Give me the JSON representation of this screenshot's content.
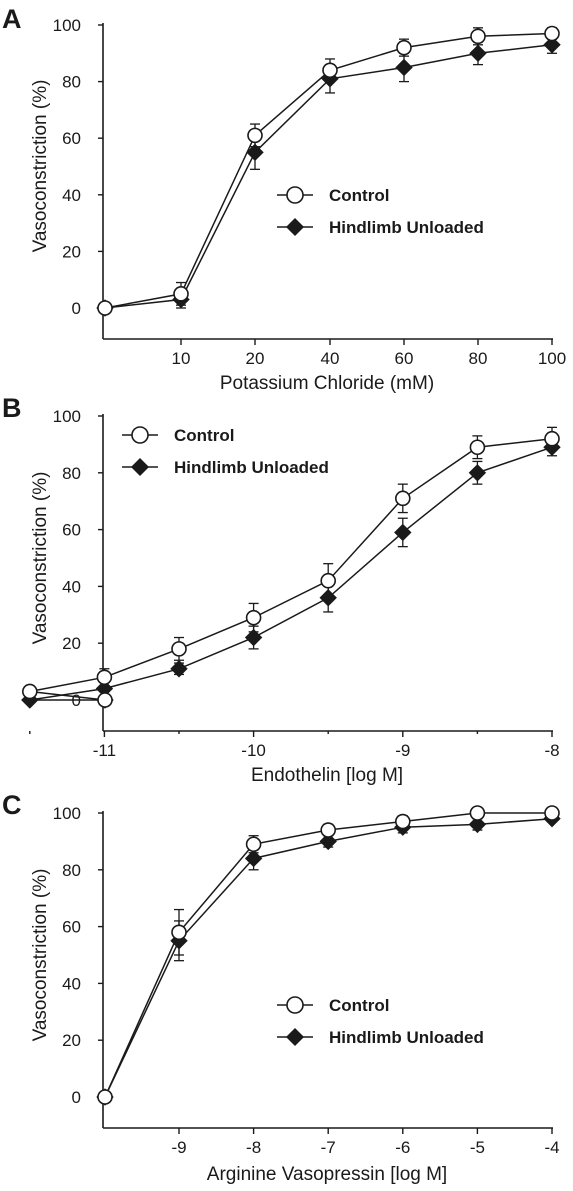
{
  "chart_data": [
    {
      "type": "line",
      "panel": "A",
      "xlabel": "Potassium Chloride (mM)",
      "ylabel": "Vasoconstriction (%)",
      "ylim": [
        0,
        100
      ],
      "yticks": [
        "0",
        "20",
        "40",
        "60",
        "80",
        "100"
      ],
      "xticks": [
        "10",
        "20",
        "40",
        "60",
        "80",
        "100"
      ],
      "legend_position": "center-right",
      "grid": false,
      "series": [
        {
          "name": "Control",
          "marker": "open-circle",
          "points": [
            {
              "x": "0",
              "y": 0,
              "err": 0
            },
            {
              "x": "10",
              "y": 5,
              "err": 4
            },
            {
              "x": "20",
              "y": 61,
              "err": 4
            },
            {
              "x": "40",
              "y": 84,
              "err": 4
            },
            {
              "x": "60",
              "y": 92,
              "err": 3
            },
            {
              "x": "80",
              "y": 96,
              "err": 3
            },
            {
              "x": "100",
              "y": 97,
              "err": 2
            }
          ]
        },
        {
          "name": "Hindlimb Unloaded",
          "marker": "filled-diamond",
          "points": [
            {
              "x": "0",
              "y": 0,
              "err": 0
            },
            {
              "x": "10",
              "y": 3,
              "err": 3
            },
            {
              "x": "20",
              "y": 55,
              "err": 6
            },
            {
              "x": "40",
              "y": 81,
              "err": 5
            },
            {
              "x": "60",
              "y": 85,
              "err": 5
            },
            {
              "x": "80",
              "y": 90,
              "err": 4
            },
            {
              "x": "100",
              "y": 93,
              "err": 3
            }
          ]
        }
      ]
    },
    {
      "type": "line",
      "panel": "B",
      "xlabel": "Endothelin [log M]",
      "ylabel": "Vasoconstriction (%)",
      "ylim": [
        0,
        100
      ],
      "yticks": [
        "0",
        "20",
        "40",
        "60",
        "80",
        "100"
      ],
      "xticks": [
        "-11",
        "-10",
        "-9",
        "-8"
      ],
      "legend_position": "top-left",
      "grid": false,
      "series": [
        {
          "name": "Control",
          "marker": "open-circle",
          "points": [
            {
              "x": "baseline",
              "y": 0,
              "err": 0
            },
            {
              "x": -11.5,
              "y": 3,
              "err": 1
            },
            {
              "x": -11,
              "y": 8,
              "err": 3
            },
            {
              "x": -10.5,
              "y": 18,
              "err": 4
            },
            {
              "x": -10,
              "y": 29,
              "err": 5
            },
            {
              "x": -9.5,
              "y": 42,
              "err": 6
            },
            {
              "x": -9,
              "y": 71,
              "err": 5
            },
            {
              "x": -8.5,
              "y": 89,
              "err": 4
            },
            {
              "x": -8,
              "y": 92,
              "err": 4
            }
          ]
        },
        {
          "name": "Hindlimb Unloaded",
          "marker": "filled-diamond",
          "points": [
            {
              "x": "baseline",
              "y": 0,
              "err": 0
            },
            {
              "x": -11.5,
              "y": 0,
              "err": 0
            },
            {
              "x": -11,
              "y": 4,
              "err": 1
            },
            {
              "x": -10.5,
              "y": 11,
              "err": 2
            },
            {
              "x": -10,
              "y": 22,
              "err": 4
            },
            {
              "x": -9.5,
              "y": 36,
              "err": 5
            },
            {
              "x": -9,
              "y": 59,
              "err": 5
            },
            {
              "x": -8.5,
              "y": 80,
              "err": 4
            },
            {
              "x": -8,
              "y": 89,
              "err": 3
            }
          ]
        }
      ]
    },
    {
      "type": "line",
      "panel": "C",
      "xlabel": "Arginine Vasopressin [log M]",
      "ylabel": "Vasoconstriction (%)",
      "ylim": [
        0,
        100
      ],
      "yticks": [
        "0",
        "20",
        "40",
        "60",
        "80",
        "100"
      ],
      "xticks": [
        "-9",
        "-8",
        "-7",
        "-6",
        "-5",
        "-4"
      ],
      "legend_position": "center-right",
      "grid": false,
      "series": [
        {
          "name": "Control",
          "marker": "open-circle",
          "points": [
            {
              "x": "baseline",
              "y": 0,
              "err": 0
            },
            {
              "x": -9,
              "y": 58,
              "err": 8
            },
            {
              "x": -8,
              "y": 89,
              "err": 3
            },
            {
              "x": -7,
              "y": 94,
              "err": 2
            },
            {
              "x": -6,
              "y": 97,
              "err": 2
            },
            {
              "x": -5,
              "y": 100,
              "err": 1
            },
            {
              "x": -4,
              "y": 100,
              "err": 1
            }
          ]
        },
        {
          "name": "Hindlimb Unloaded",
          "marker": "filled-diamond",
          "points": [
            {
              "x": "baseline",
              "y": 0,
              "err": 0
            },
            {
              "x": -9,
              "y": 55,
              "err": 7
            },
            {
              "x": -8,
              "y": 84,
              "err": 4
            },
            {
              "x": -7,
              "y": 90,
              "err": 2
            },
            {
              "x": -6,
              "y": 95,
              "err": 2
            },
            {
              "x": -5,
              "y": 96,
              "err": 2
            },
            {
              "x": -4,
              "y": 98,
              "err": 1
            }
          ]
        }
      ]
    }
  ]
}
